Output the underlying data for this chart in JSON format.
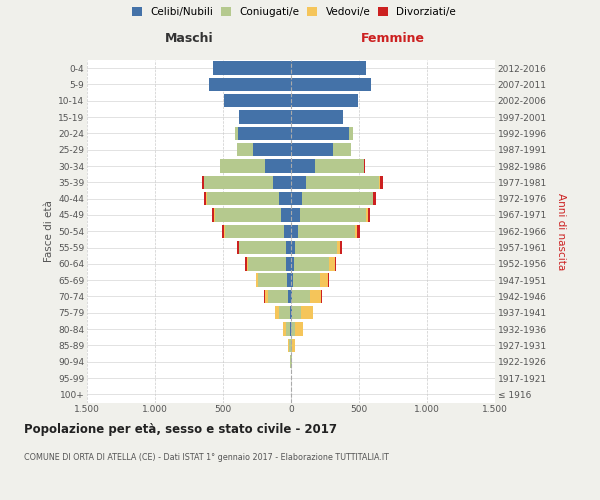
{
  "age_groups": [
    "100+",
    "95-99",
    "90-94",
    "85-89",
    "80-84",
    "75-79",
    "70-74",
    "65-69",
    "60-64",
    "55-59",
    "50-54",
    "45-49",
    "40-44",
    "35-39",
    "30-34",
    "25-29",
    "20-24",
    "15-19",
    "10-14",
    "5-9",
    "0-4"
  ],
  "birth_years": [
    "≤ 1916",
    "1917-1921",
    "1922-1926",
    "1927-1931",
    "1932-1936",
    "1937-1941",
    "1942-1946",
    "1947-1951",
    "1952-1956",
    "1957-1961",
    "1962-1966",
    "1967-1971",
    "1972-1976",
    "1977-1981",
    "1982-1986",
    "1987-1991",
    "1992-1996",
    "1997-2001",
    "2002-2006",
    "2007-2011",
    "2012-2016"
  ],
  "male_celibe": [
    0,
    0,
    1,
    2,
    5,
    10,
    20,
    30,
    35,
    40,
    55,
    70,
    90,
    130,
    190,
    280,
    390,
    380,
    490,
    600,
    570
  ],
  "male_coniugato": [
    0,
    1,
    5,
    15,
    35,
    80,
    150,
    210,
    280,
    340,
    430,
    490,
    530,
    510,
    330,
    120,
    20,
    5,
    0,
    0,
    0
  ],
  "male_vedovo": [
    0,
    0,
    2,
    8,
    20,
    30,
    20,
    15,
    10,
    5,
    5,
    5,
    5,
    0,
    0,
    0,
    0,
    0,
    0,
    0,
    0
  ],
  "male_divorziato": [
    0,
    0,
    0,
    0,
    0,
    0,
    5,
    5,
    10,
    15,
    15,
    15,
    15,
    15,
    5,
    0,
    0,
    0,
    0,
    0,
    0
  ],
  "female_nubile": [
    0,
    1,
    1,
    1,
    3,
    5,
    10,
    15,
    20,
    30,
    50,
    65,
    80,
    110,
    175,
    310,
    430,
    380,
    490,
    590,
    550
  ],
  "female_coniugata": [
    0,
    1,
    5,
    10,
    30,
    70,
    130,
    200,
    260,
    310,
    420,
    490,
    520,
    540,
    360,
    130,
    25,
    5,
    0,
    0,
    0
  ],
  "female_vedova": [
    0,
    1,
    5,
    20,
    55,
    90,
    80,
    60,
    40,
    20,
    15,
    10,
    5,
    5,
    0,
    0,
    0,
    0,
    0,
    0,
    0
  ],
  "female_divorziata": [
    0,
    0,
    0,
    0,
    0,
    0,
    5,
    5,
    10,
    15,
    20,
    15,
    20,
    20,
    10,
    0,
    0,
    0,
    0,
    0,
    0
  ],
  "color_celibe": "#4472a8",
  "color_coniugato": "#b5c98e",
  "color_vedovo": "#f5c55a",
  "color_divorziato": "#cc2020",
  "bg_color": "#f0f0eb",
  "plot_bg": "#ffffff",
  "title": "Popolazione per età, sesso e stato civile - 2017",
  "subtitle": "COMUNE DI ORTA DI ATELLA (CE) - Dati ISTAT 1° gennaio 2017 - Elaborazione TUTTITALIA.IT",
  "xlabel_left": "Maschi",
  "xlabel_right": "Femmine",
  "ylabel_left": "Fasce di età",
  "ylabel_right": "Anni di nascita",
  "xmin": -1500,
  "xmax": 1500,
  "legend_labels": [
    "Celibi/Nubili",
    "Coniugati/e",
    "Vedovi/e",
    "Divorziati/e"
  ]
}
